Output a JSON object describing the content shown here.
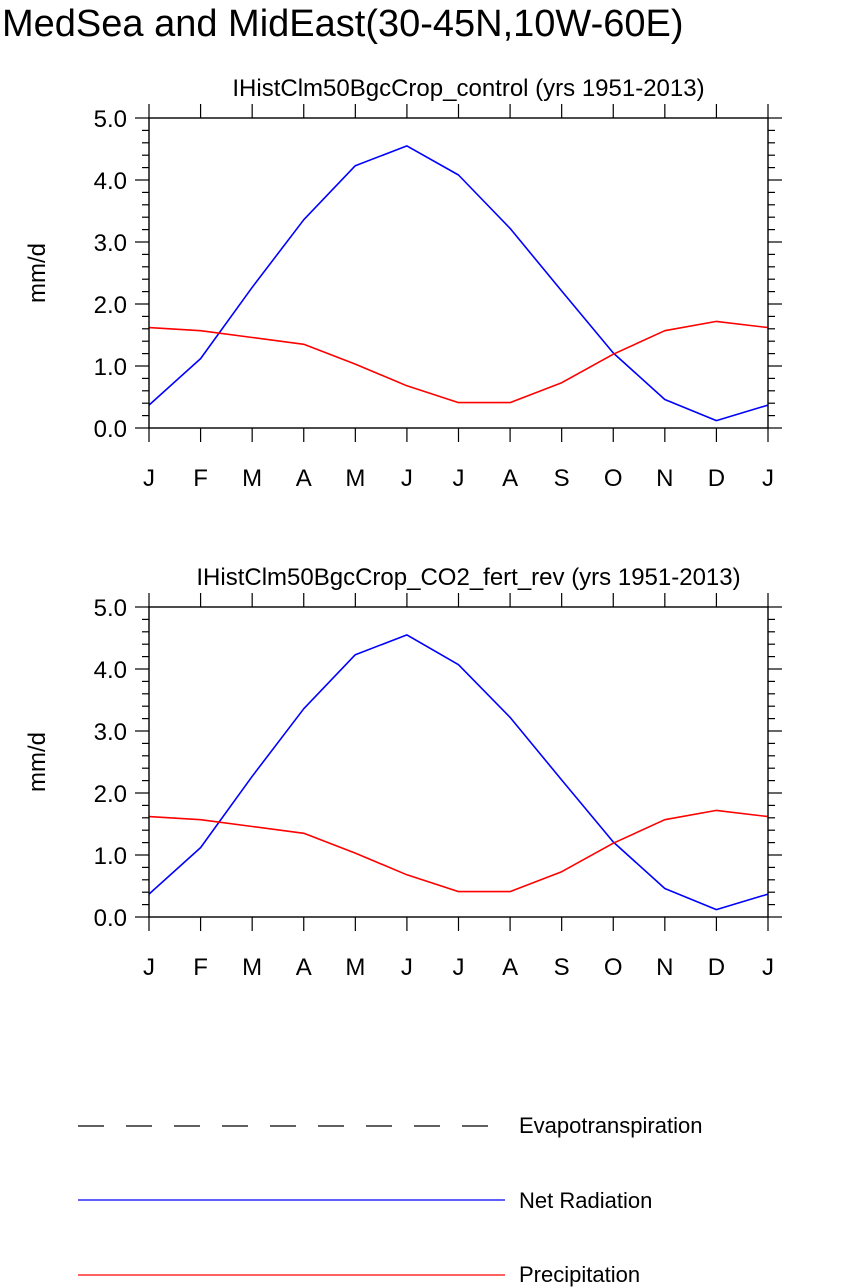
{
  "figure": {
    "title": "MedSea and MidEast(30-45N,10W-60E)"
  },
  "legend": {
    "items": [
      {
        "label": "Evapotranspiration",
        "color": "#000000",
        "dash": true
      },
      {
        "label": "Net Radiation",
        "color": "#0000ff",
        "dash": false
      },
      {
        "label": "Precipitation",
        "color": "#ff0000",
        "dash": false
      }
    ]
  },
  "chart_data": [
    {
      "type": "line",
      "title": "IHistClm50BgcCrop_control (yrs 1951-2013)",
      "ylabel": "mm/d",
      "xlabel": "",
      "ylim": [
        0,
        5
      ],
      "yticks": [
        "0.0",
        "1.0",
        "2.0",
        "3.0",
        "4.0",
        "5.0"
      ],
      "categories": [
        "J",
        "F",
        "M",
        "A",
        "M",
        "J",
        "J",
        "A",
        "S",
        "O",
        "N",
        "D",
        "J"
      ],
      "series": [
        {
          "name": "Net Radiation",
          "color": "#0000ff",
          "values": [
            0.37,
            1.12,
            2.27,
            3.36,
            4.23,
            4.55,
            4.08,
            3.22,
            2.21,
            1.21,
            0.46,
            0.12,
            0.37
          ]
        },
        {
          "name": "Precipitation",
          "color": "#ff0000",
          "values": [
            1.62,
            1.57,
            1.46,
            1.35,
            1.03,
            0.68,
            0.41,
            0.41,
            0.73,
            1.19,
            1.57,
            1.72,
            1.62
          ]
        }
      ]
    },
    {
      "type": "line",
      "title": "IHistClm50BgcCrop_CO2_fert_rev (yrs 1951-2013)",
      "ylabel": "mm/d",
      "xlabel": "",
      "ylim": [
        0,
        5
      ],
      "yticks": [
        "0.0",
        "1.0",
        "2.0",
        "3.0",
        "4.0",
        "5.0"
      ],
      "categories": [
        "J",
        "F",
        "M",
        "A",
        "M",
        "J",
        "J",
        "A",
        "S",
        "O",
        "N",
        "D",
        "J"
      ],
      "series": [
        {
          "name": "Net Radiation",
          "color": "#0000ff",
          "values": [
            0.37,
            1.12,
            2.27,
            3.36,
            4.23,
            4.55,
            4.07,
            3.22,
            2.21,
            1.21,
            0.46,
            0.12,
            0.37
          ]
        },
        {
          "name": "Precipitation",
          "color": "#ff0000",
          "values": [
            1.62,
            1.57,
            1.46,
            1.35,
            1.03,
            0.68,
            0.41,
            0.41,
            0.73,
            1.19,
            1.57,
            1.72,
            1.62
          ]
        }
      ]
    }
  ]
}
